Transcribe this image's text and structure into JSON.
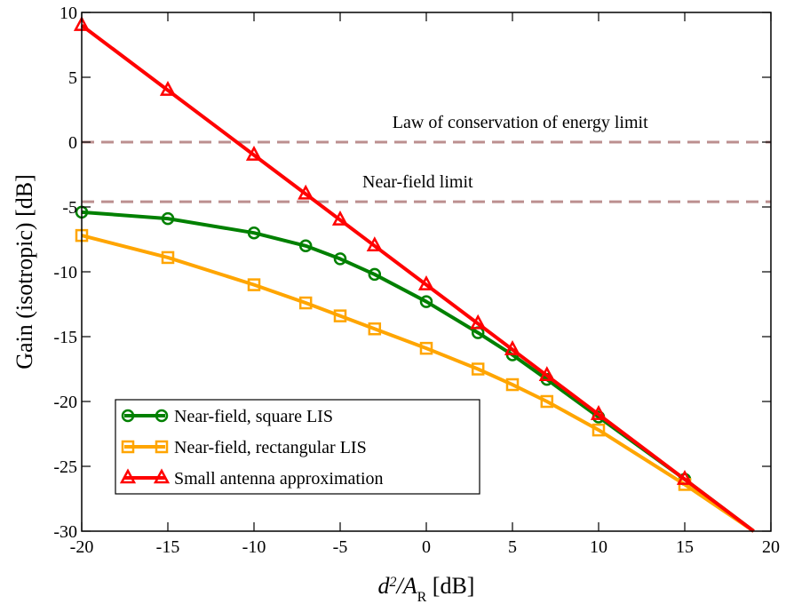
{
  "chart_data": {
    "type": "line",
    "title": "",
    "xlabel_main": "d",
    "xlabel_sup": "2",
    "xlabel_mid": "/A",
    "xlabel_sub": "R",
    "xlabel_unit": " [dB]",
    "ylabel": "Gain (isotropic) [dB]",
    "xlim": [
      -20,
      20
    ],
    "ylim": [
      -30,
      10
    ],
    "xticks": [
      -20,
      -15,
      -10,
      -5,
      0,
      5,
      10,
      15,
      20
    ],
    "yticks": [
      -30,
      -25,
      -20,
      -15,
      -10,
      -5,
      0,
      5,
      10
    ],
    "grid": false,
    "legend_position": "bottom-left",
    "series": [
      {
        "name": "Near-field, square LIS",
        "color": "#008000",
        "marker": "circle",
        "x": [
          -20,
          -15,
          -10,
          -7,
          -5,
          -3,
          0,
          3,
          5,
          7,
          10,
          15,
          19
        ],
        "y": [
          -5.4,
          -5.9,
          -7.0,
          -8.0,
          -9.0,
          -10.2,
          -12.3,
          -14.7,
          -16.4,
          -18.3,
          -21.2,
          -26.0,
          -30.0
        ]
      },
      {
        "name": "Near-field, rectangular LIS",
        "color": "#FFA500",
        "marker": "square",
        "x": [
          -20,
          -15,
          -10,
          -7,
          -5,
          -3,
          0,
          3,
          5,
          7,
          10,
          15,
          19
        ],
        "y": [
          -7.2,
          -8.9,
          -11.0,
          -12.4,
          -13.4,
          -14.4,
          -15.9,
          -17.5,
          -18.7,
          -20.0,
          -22.2,
          -26.4,
          -30.0
        ]
      },
      {
        "name": "Small antenna approximation",
        "color": "#FF0000",
        "marker": "triangle",
        "x": [
          -20,
          -15,
          -10,
          -7,
          -5,
          -3,
          0,
          3,
          5,
          7,
          10,
          15,
          19
        ],
        "y": [
          9,
          4,
          -1,
          -4,
          -6,
          -8,
          -11,
          -14,
          -16,
          -18,
          -21,
          -26,
          -30
        ]
      }
    ],
    "reference_lines": [
      {
        "label": "Law of conservation of energy limit",
        "y": 0,
        "color": "#BC8F8F"
      },
      {
        "label": "Near-field limit",
        "y": -4.6,
        "color": "#BC8F8F"
      }
    ]
  }
}
